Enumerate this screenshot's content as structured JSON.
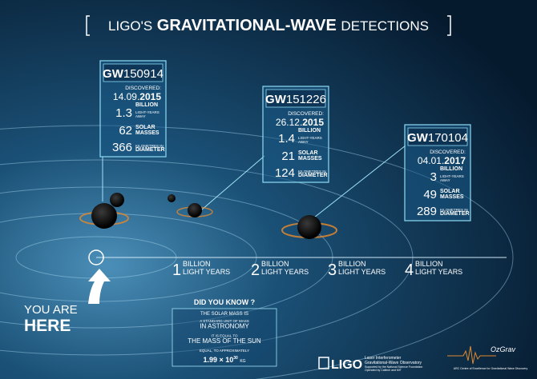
{
  "title": {
    "prefix": "LIGO'S",
    "main": "GRAVITATIONAL-WAVE",
    "suffix": "DETECTIONS"
  },
  "detections": [
    {
      "gw": "GW",
      "id": "150914",
      "discovered_label": "DISCOVERED:",
      "date": "14.09.",
      "year": "2015",
      "distance": "1.3",
      "distance_unit": [
        "BILLION",
        "LIGHT-YEARS",
        "AWAY"
      ],
      "mass": "62",
      "mass_unit": [
        "SOLAR",
        "MASSES"
      ],
      "diameter": "366",
      "diameter_unit": [
        "KILOMETRES IN",
        "DIAMETER"
      ]
    },
    {
      "gw": "GW",
      "id": "151226",
      "discovered_label": "DISCOVERED:",
      "date": "26.12.",
      "year": "2015",
      "distance": "1.4",
      "distance_unit": [
        "BILLION",
        "LIGHT-YEARS",
        "AWAY"
      ],
      "mass": "21",
      "mass_unit": [
        "SOLAR",
        "MASSES"
      ],
      "diameter": "124",
      "diameter_unit": [
        "KILOMETRES IN",
        "DIAMETER"
      ]
    },
    {
      "gw": "GW",
      "id": "170104",
      "discovered_label": "DISCOVERED:",
      "date": "04.01.",
      "year": "2017",
      "distance": "3",
      "distance_unit": [
        "BILLION",
        "LIGHT-YEARS",
        "AWAY"
      ],
      "mass": "49",
      "mass_unit": [
        "SOLAR",
        "MASSES"
      ],
      "diameter": "289",
      "diameter_unit": [
        "KILOMETRES IN",
        "DIAMETER"
      ]
    }
  ],
  "distances": [
    {
      "number": "1",
      "unit": [
        "BILLION",
        "LIGHT YEARS"
      ]
    },
    {
      "number": "2",
      "unit": [
        "BILLION",
        "LIGHT YEARS"
      ]
    },
    {
      "number": "3",
      "unit": [
        "BILLION",
        "LIGHT YEARS"
      ]
    },
    {
      "number": "4",
      "unit": [
        "BILLION",
        "LIGHT YEARS"
      ]
    }
  ],
  "you_are_here": [
    "YOU ARE",
    "HERE"
  ],
  "did_you_know": {
    "heading": "DID YOU KNOW ?",
    "lines": [
      "THE SOLAR MASS IS",
      "A STANDARD UNIT OF MASS",
      "IN ASTRONOMY",
      "IT IS EQUAL TO",
      "THE MASS OF THE SUN",
      "EQUAL, TO APPROXIMATELY"
    ],
    "value": "1.99 × 10",
    "exponent": "30",
    "unit": "KG"
  },
  "ligo": {
    "name": "LIGO",
    "lines": [
      "Laser Interferometer",
      "Gravitational-Wave Observatory",
      "Supported by the National Science Foundation",
      "Operated by Caltech and MIT"
    ]
  },
  "ozgrav": {
    "name": "OzGrav",
    "caption": "ARC Centre of Excellence for Gravitational Wave Discovery"
  }
}
